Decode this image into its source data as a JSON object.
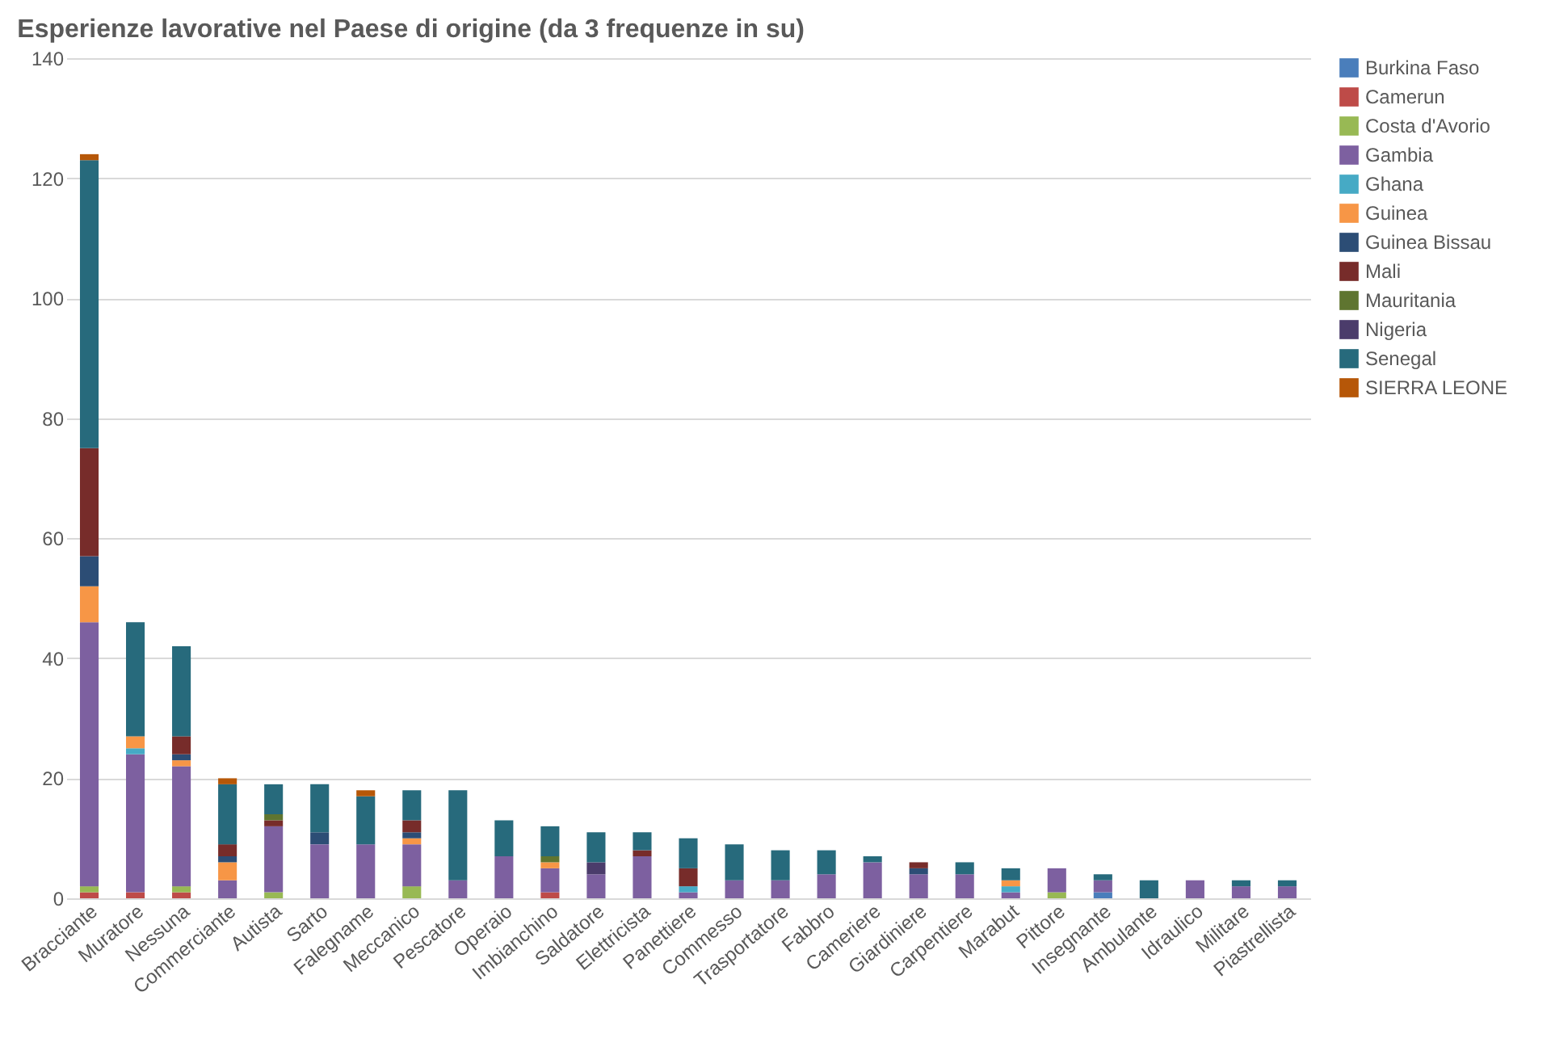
{
  "chart_data": {
    "type": "bar",
    "title": "Esperienze lavorative nel Paese di origine (da 3 frequenze in su)",
    "stacked": true,
    "grid": "y",
    "legend": "top right",
    "ylim": [
      0,
      140
    ],
    "yticks": [
      0,
      20,
      40,
      60,
      80,
      100,
      120,
      140
    ],
    "categories": [
      "Bracciante",
      "Muratore",
      "Nessuna",
      "Commerciante",
      "Autista",
      "Sarto",
      "Falegname",
      "Meccanico",
      "Pescatore",
      "Operaio",
      "Imbianchino",
      "Saldatore",
      "Elettricista",
      "Panettiere",
      "Commesso",
      "Trasportatore",
      "Fabbro",
      "Cameriere",
      "Giardiniere",
      "Carpentiere",
      "Marabut",
      "Pittore",
      "Insegnante",
      "Ambulante",
      "Idraulico",
      "Militare",
      "Piastrellista"
    ],
    "series": [
      {
        "name": "Burkina Faso",
        "color": "#4a7ebb",
        "values": [
          0,
          0,
          0,
          0,
          0,
          0,
          0,
          0,
          0,
          0,
          0,
          0,
          0,
          0,
          0,
          0,
          0,
          0,
          0,
          0,
          0,
          0,
          1,
          0,
          0,
          0,
          0
        ]
      },
      {
        "name": "Camerun",
        "color": "#be4b48",
        "values": [
          1,
          1,
          1,
          0,
          0,
          0,
          0,
          0,
          0,
          0,
          1,
          0,
          0,
          0,
          0,
          0,
          0,
          0,
          0,
          0,
          0,
          0,
          0,
          0,
          0,
          0,
          0
        ]
      },
      {
        "name": "Costa d'Avorio",
        "color": "#98b954",
        "values": [
          1,
          0,
          1,
          0,
          1,
          0,
          0,
          2,
          0,
          0,
          0,
          0,
          0,
          0,
          0,
          0,
          0,
          0,
          0,
          0,
          0,
          1,
          0,
          0,
          0,
          0,
          0
        ]
      },
      {
        "name": "Gambia",
        "color": "#7d60a0",
        "values": [
          44,
          23,
          20,
          3,
          11,
          9,
          9,
          7,
          3,
          7,
          4,
          4,
          7,
          1,
          3,
          3,
          4,
          6,
          4,
          4,
          1,
          4,
          2,
          0,
          3,
          2,
          2
        ]
      },
      {
        "name": "Ghana",
        "color": "#46aac5",
        "values": [
          0,
          1,
          0,
          0,
          0,
          0,
          0,
          0,
          0,
          0,
          0,
          0,
          0,
          1,
          0,
          0,
          0,
          0,
          0,
          0,
          1,
          0,
          0,
          0,
          0,
          0,
          0
        ]
      },
      {
        "name": "Guinea",
        "color": "#f79646",
        "values": [
          6,
          2,
          1,
          3,
          0,
          0,
          0,
          1,
          0,
          0,
          1,
          0,
          0,
          0,
          0,
          0,
          0,
          0,
          0,
          0,
          1,
          0,
          0,
          0,
          0,
          0,
          0
        ]
      },
      {
        "name": "Guinea Bissau",
        "color": "#2c4d75",
        "values": [
          5,
          0,
          1,
          1,
          0,
          2,
          0,
          1,
          0,
          0,
          0,
          0,
          0,
          0,
          0,
          0,
          0,
          0,
          1,
          0,
          0,
          0,
          0,
          0,
          0,
          0,
          0
        ]
      },
      {
        "name": "Mali",
        "color": "#772c2a",
        "values": [
          18,
          0,
          3,
          2,
          1,
          0,
          0,
          2,
          0,
          0,
          0,
          0,
          1,
          3,
          0,
          0,
          0,
          0,
          1,
          0,
          0,
          0,
          0,
          0,
          0,
          0,
          0
        ]
      },
      {
        "name": "Mauritania",
        "color": "#5f7530",
        "values": [
          0,
          0,
          0,
          0,
          1,
          0,
          0,
          0,
          0,
          0,
          1,
          0,
          0,
          0,
          0,
          0,
          0,
          0,
          0,
          0,
          0,
          0,
          0,
          0,
          0,
          0,
          0
        ]
      },
      {
        "name": "Nigeria",
        "color": "#4b3c6b",
        "values": [
          0,
          0,
          0,
          0,
          0,
          0,
          0,
          0,
          0,
          0,
          0,
          2,
          0,
          0,
          0,
          0,
          0,
          0,
          0,
          0,
          0,
          0,
          0,
          0,
          0,
          0,
          0
        ]
      },
      {
        "name": "Senegal",
        "color": "#276a7c",
        "values": [
          48,
          19,
          15,
          10,
          5,
          8,
          8,
          5,
          15,
          6,
          5,
          5,
          3,
          5,
          6,
          5,
          4,
          1,
          0,
          2,
          2,
          0,
          1,
          3,
          0,
          1,
          1
        ]
      },
      {
        "name": "SIERRA LEONE",
        "color": "#b65708",
        "values": [
          1,
          0,
          0,
          1,
          0,
          0,
          1,
          0,
          0,
          0,
          0,
          0,
          0,
          0,
          0,
          0,
          0,
          0,
          0,
          0,
          0,
          0,
          0,
          0,
          0,
          0,
          0
        ]
      }
    ]
  }
}
